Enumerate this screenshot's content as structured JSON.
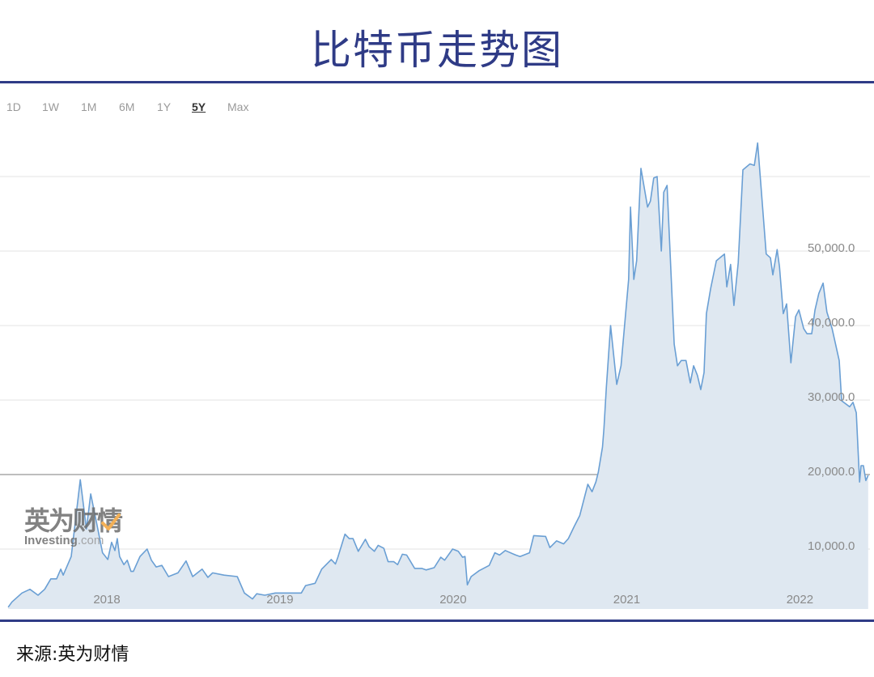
{
  "header": {
    "title": "比特币走势图"
  },
  "tabs": [
    {
      "label": "1D",
      "active": false
    },
    {
      "label": "1W",
      "active": false
    },
    {
      "label": "1M",
      "active": false
    },
    {
      "label": "6M",
      "active": false
    },
    {
      "label": "1Y",
      "active": false
    },
    {
      "label": "5Y",
      "active": true
    },
    {
      "label": "Max",
      "active": false
    }
  ],
  "watermark": {
    "cn": "英为财情",
    "en": "Investing",
    "en_suffix": ".com"
  },
  "footer": {
    "source": "来源:英为财情"
  },
  "colors": {
    "brand_navy": "#2f3b86",
    "line": "#6a9fd4",
    "area": "#dfe8f1",
    "highlight_grid": "#a8a8a8"
  },
  "chart_data": {
    "type": "area",
    "title": "",
    "xlabel": "",
    "ylabel": "",
    "x_ticks": [
      "2018",
      "2019",
      "2020",
      "2021",
      "2022"
    ],
    "y_ticks": [
      "10,000.0",
      "20,000.0",
      "30,000.0",
      "40,000.0",
      "50,000.0"
    ],
    "y_gridlines": [
      10000,
      20000,
      30000,
      40000,
      50000,
      60000
    ],
    "highlighted_gridline": 20000,
    "y_axis_position": "right",
    "grid": true,
    "legend": "none",
    "series": [
      {
        "points": [
          [
            "2017-06-07",
            2200
          ],
          [
            "2017-06-15",
            2900
          ],
          [
            "2017-07-06",
            4100
          ],
          [
            "2017-07-23",
            4600
          ],
          [
            "2017-08-09",
            3800
          ],
          [
            "2017-08-23",
            4600
          ],
          [
            "2017-09-05",
            6000
          ],
          [
            "2017-09-17",
            6000
          ],
          [
            "2017-09-26",
            7300
          ],
          [
            "2017-10-01",
            6500
          ],
          [
            "2017-10-18",
            9000
          ],
          [
            "2017-11-06",
            19300
          ],
          [
            "2017-11-19",
            12700
          ],
          [
            "2017-11-28",
            17400
          ],
          [
            "2017-12-12",
            13000
          ],
          [
            "2017-12-23",
            9500
          ],
          [
            "2018-01-03",
            8600
          ],
          [
            "2018-01-11",
            10900
          ],
          [
            "2018-01-18",
            9800
          ],
          [
            "2018-01-23",
            11400
          ],
          [
            "2018-01-28",
            9000
          ],
          [
            "2018-02-06",
            7900
          ],
          [
            "2018-02-13",
            8500
          ],
          [
            "2018-02-21",
            7000
          ],
          [
            "2018-02-26",
            7000
          ],
          [
            "2018-03-12",
            9000
          ],
          [
            "2018-03-27",
            10000
          ],
          [
            "2018-04-05",
            8500
          ],
          [
            "2018-04-15",
            7600
          ],
          [
            "2018-04-27",
            7800
          ],
          [
            "2018-05-11",
            6300
          ],
          [
            "2018-05-31",
            6800
          ],
          [
            "2018-06-17",
            8400
          ],
          [
            "2018-07-01",
            6300
          ],
          [
            "2018-07-21",
            7300
          ],
          [
            "2018-08-02",
            6200
          ],
          [
            "2018-08-12",
            6800
          ],
          [
            "2018-09-05",
            6500
          ],
          [
            "2018-10-03",
            6300
          ],
          [
            "2018-10-18",
            4100
          ],
          [
            "2018-11-04",
            3300
          ],
          [
            "2018-11-13",
            4000
          ],
          [
            "2018-11-30",
            3800
          ],
          [
            "2018-12-22",
            4100
          ],
          [
            "2019-02-15",
            4100
          ],
          [
            "2019-02-24",
            5100
          ],
          [
            "2019-03-16",
            5400
          ],
          [
            "2019-03-30",
            7300
          ],
          [
            "2019-04-19",
            8600
          ],
          [
            "2019-04-28",
            8000
          ],
          [
            "2019-05-03",
            8900
          ],
          [
            "2019-05-18",
            12000
          ],
          [
            "2019-05-27",
            11400
          ],
          [
            "2019-06-04",
            11400
          ],
          [
            "2019-06-15",
            9700
          ],
          [
            "2019-06-30",
            11300
          ],
          [
            "2019-07-08",
            10300
          ],
          [
            "2019-07-19",
            9700
          ],
          [
            "2019-07-27",
            10500
          ],
          [
            "2019-08-08",
            10100
          ],
          [
            "2019-08-17",
            8300
          ],
          [
            "2019-08-29",
            8300
          ],
          [
            "2019-09-06",
            7900
          ],
          [
            "2019-09-16",
            9300
          ],
          [
            "2019-09-25",
            9200
          ],
          [
            "2019-10-12",
            7400
          ],
          [
            "2019-10-27",
            7400
          ],
          [
            "2019-11-05",
            7200
          ],
          [
            "2019-11-22",
            7500
          ],
          [
            "2019-12-06",
            8900
          ],
          [
            "2019-12-14",
            8500
          ],
          [
            "2019-12-31",
            10000
          ],
          [
            "2020-01-12",
            9700
          ],
          [
            "2020-01-21",
            8900
          ],
          [
            "2020-01-26",
            9000
          ],
          [
            "2020-01-31",
            5200
          ],
          [
            "2020-02-08",
            6300
          ],
          [
            "2020-02-25",
            7100
          ],
          [
            "2020-03-17",
            7800
          ],
          [
            "2020-03-29",
            9500
          ],
          [
            "2020-04-08",
            9200
          ],
          [
            "2020-04-20",
            9800
          ],
          [
            "2020-05-12",
            9200
          ],
          [
            "2020-05-21",
            9000
          ],
          [
            "2020-06-10",
            9500
          ],
          [
            "2020-06-19",
            11800
          ],
          [
            "2020-07-14",
            11700
          ],
          [
            "2020-07-23",
            10200
          ],
          [
            "2020-08-06",
            11100
          ],
          [
            "2020-08-21",
            10700
          ],
          [
            "2020-08-31",
            11400
          ],
          [
            "2020-09-12",
            13000
          ],
          [
            "2020-09-24",
            14500
          ],
          [
            "2020-10-11",
            18700
          ],
          [
            "2020-10-20",
            17700
          ],
          [
            "2020-10-28",
            19000
          ],
          [
            "2020-11-02",
            20300
          ],
          [
            "2020-11-11",
            23700
          ],
          [
            "2020-11-14",
            26200
          ],
          [
            "2020-11-19",
            31600
          ],
          [
            "2020-11-28",
            40000
          ],
          [
            "2020-12-11",
            32100
          ],
          [
            "2020-12-20",
            34600
          ],
          [
            "2021-01-05",
            46200
          ],
          [
            "2021-01-09",
            55900
          ],
          [
            "2021-01-16",
            46200
          ],
          [
            "2021-01-22",
            48700
          ],
          [
            "2021-01-31",
            61100
          ],
          [
            "2021-02-14",
            55900
          ],
          [
            "2021-02-20",
            56700
          ],
          [
            "2021-02-27",
            59800
          ],
          [
            "2021-03-06",
            60000
          ],
          [
            "2021-03-15",
            50000
          ],
          [
            "2021-03-20",
            57900
          ],
          [
            "2021-03-27",
            58800
          ],
          [
            "2021-04-11",
            37500
          ],
          [
            "2021-04-18",
            34600
          ],
          [
            "2021-04-26",
            35300
          ],
          [
            "2021-05-06",
            35300
          ],
          [
            "2021-05-15",
            32300
          ],
          [
            "2021-05-22",
            34600
          ],
          [
            "2021-05-30",
            33300
          ],
          [
            "2021-06-06",
            31400
          ],
          [
            "2021-06-13",
            33700
          ],
          [
            "2021-06-18",
            41600
          ],
          [
            "2021-06-27",
            45000
          ],
          [
            "2021-07-09",
            48700
          ],
          [
            "2021-07-26",
            49600
          ],
          [
            "2021-07-31",
            45200
          ],
          [
            "2021-08-08",
            48200
          ],
          [
            "2021-08-15",
            42700
          ],
          [
            "2021-08-24",
            48400
          ],
          [
            "2021-09-03",
            60900
          ],
          [
            "2021-09-18",
            61700
          ],
          [
            "2021-09-27",
            61500
          ],
          [
            "2021-10-04",
            64500
          ],
          [
            "2021-10-10",
            59600
          ],
          [
            "2021-10-22",
            49600
          ],
          [
            "2021-10-31",
            49100
          ],
          [
            "2021-11-05",
            46800
          ],
          [
            "2021-11-14",
            50200
          ],
          [
            "2021-11-19",
            47900
          ],
          [
            "2021-11-27",
            41600
          ],
          [
            "2021-12-04",
            42900
          ],
          [
            "2021-12-13",
            35000
          ],
          [
            "2021-12-23",
            41200
          ],
          [
            "2021-12-30",
            42100
          ],
          [
            "2022-01-09",
            39600
          ],
          [
            "2022-01-16",
            38900
          ],
          [
            "2022-01-26",
            38900
          ],
          [
            "2022-02-02",
            42100
          ],
          [
            "2022-02-10",
            44300
          ],
          [
            "2022-02-19",
            45700
          ],
          [
            "2022-02-27",
            41800
          ],
          [
            "2022-03-10",
            39600
          ],
          [
            "2022-03-25",
            35300
          ],
          [
            "2022-03-30",
            29900
          ],
          [
            "2022-04-16",
            29100
          ],
          [
            "2022-04-23",
            29700
          ],
          [
            "2022-04-30",
            28300
          ],
          [
            "2022-05-07",
            19000
          ],
          [
            "2022-05-10",
            21200
          ],
          [
            "2022-05-15",
            21200
          ],
          [
            "2022-05-20",
            19200
          ],
          [
            "2022-05-25",
            19900
          ]
        ]
      }
    ]
  }
}
